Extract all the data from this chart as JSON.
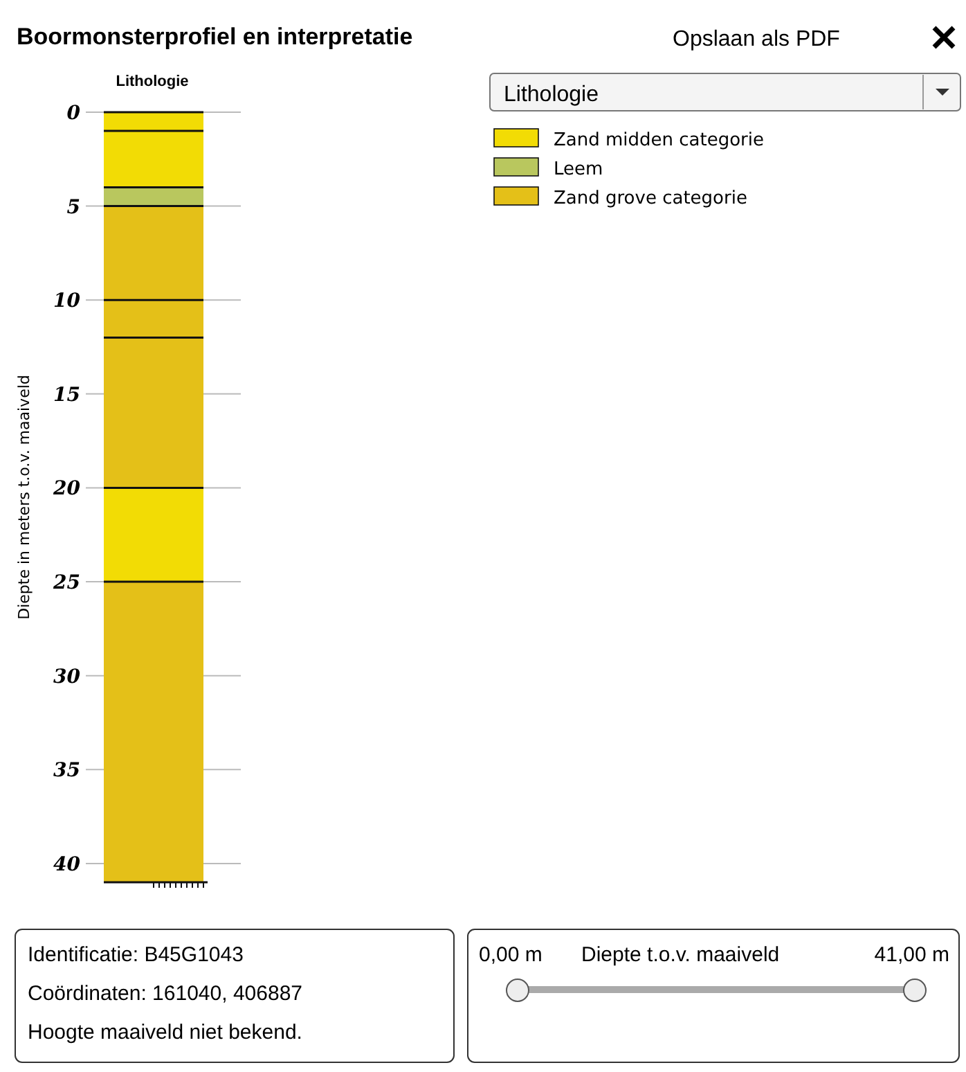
{
  "chart_data": {
    "type": "bar",
    "stacked": true,
    "title": "Boormonsterprofiel en interpretatie",
    "subtitle": "Lithologie",
    "ylabel": "Diepte in meters t.o.v. maaiveld",
    "categories": [
      null
    ],
    "series": [
      {
        "name": "Zand midden categorie",
        "color": "#f2dc05",
        "values": [
          1
        ]
      },
      {
        "color": "#f2dc05",
        "values": [
          3
        ]
      },
      {
        "name": "Leem",
        "color": "#b9c75e",
        "values": [
          1
        ]
      },
      {
        "name": "Zand grove categorie",
        "color": "#e4c018",
        "values": [
          5
        ]
      },
      {
        "color": "#e4c018",
        "values": [
          2
        ]
      },
      {
        "color": "#e4c018",
        "values": [
          8
        ]
      },
      {
        "color": "#f2dc05",
        "values": [
          5
        ]
      },
      {
        "color": "#e4c018",
        "values": [
          16
        ]
      }
    ],
    "ylim": [
      41,
      0
    ],
    "yticks": [
      0,
      5,
      10,
      15,
      20,
      25,
      30,
      35,
      40
    ],
    "grid": "y",
    "legend": "top right",
    "annotations": [
      "Opslaan als PDF",
      "Lithologie",
      "Identificatie: B45G1043",
      "Coördinaten: 161040, 406887",
      "Hoogte maaiveld niet bekend.",
      "0,00 m",
      "Diepte t.o.v. maaiveld",
      "41,00 m"
    ]
  }
}
